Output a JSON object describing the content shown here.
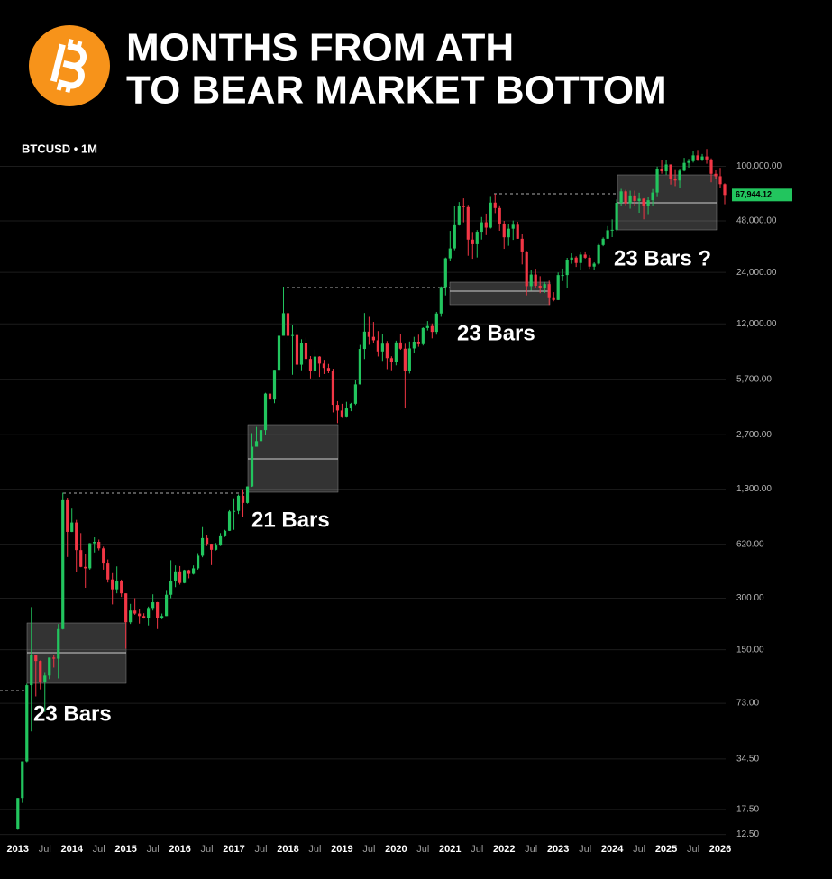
{
  "chart_data": {
    "type": "candlestick",
    "title": [
      "MONTHS FROM ATH",
      "TO BEAR MARKET BOTTOM"
    ],
    "symbol": "BTCUSD • 1M",
    "annotations": [
      "23 Bars",
      "21 Bars",
      "23 Bars",
      "23 Bars ?"
    ],
    "last_price": {
      "value": 67944.12,
      "label": "67,944.12"
    },
    "up_color": "#22c55e",
    "down_color": "#f23645",
    "log_scale": true,
    "grid": true,
    "xlim": [
      2012.67,
      2026.1
    ],
    "xticks": [
      2013,
      {
        "value": 2013.5,
        "label": "Jul"
      },
      2014,
      {
        "value": 2014.5,
        "label": "Jul"
      },
      2015,
      {
        "value": 2015.5,
        "label": "Jul"
      },
      2016,
      {
        "value": 2016.5,
        "label": "Jul"
      },
      2017,
      {
        "value": 2017.5,
        "label": "Jul"
      },
      2018,
      {
        "value": 2018.5,
        "label": "Jul"
      },
      2019,
      {
        "value": 2019.5,
        "label": "Jul"
      },
      2020,
      {
        "value": 2020.5,
        "label": "Jul"
      },
      2021,
      {
        "value": 2021.5,
        "label": "Jul"
      },
      2022,
      {
        "value": 2022.5,
        "label": "Jul"
      },
      2023,
      {
        "value": 2023.5,
        "label": "Jul"
      },
      2024,
      {
        "value": 2024.5,
        "label": "Jul"
      },
      2025,
      {
        "value": 2025.5,
        "label": "Jul"
      },
      2026
    ],
    "ylim": [
      10,
      150000
    ],
    "yticks": [
      {
        "value": 100000,
        "label": "100,000.00"
      },
      {
        "value": 48000,
        "label": "48,000.00"
      },
      {
        "value": 24000,
        "label": "24,000.00"
      },
      {
        "value": 12000,
        "label": "12,000.00"
      },
      {
        "value": 5700,
        "label": "5,700.00"
      },
      {
        "value": 2700,
        "label": "2,700.00"
      },
      {
        "value": 1300,
        "label": "1,300.00"
      },
      {
        "value": 620,
        "label": "620.00"
      },
      {
        "value": 300,
        "label": "300.00"
      },
      {
        "value": 150,
        "label": "150.00"
      },
      {
        "value": 73,
        "label": "73.00"
      },
      {
        "value": 34.5,
        "label": "34.50"
      },
      {
        "value": 17.5,
        "label": "17.50"
      },
      {
        "value": 12.5,
        "label": "12.50"
      }
    ],
    "x": [
      "2013-01",
      "2013-02",
      "2013-03",
      "2013-04",
      "2013-05",
      "2013-06",
      "2013-07",
      "2013-08",
      "2013-09",
      "2013-10",
      "2013-11",
      "2013-12",
      "2014-01",
      "2014-02",
      "2014-03",
      "2014-04",
      "2014-05",
      "2014-06",
      "2014-07",
      "2014-08",
      "2014-09",
      "2014-10",
      "2014-11",
      "2014-12",
      "2015-01",
      "2015-02",
      "2015-03",
      "2015-04",
      "2015-05",
      "2015-06",
      "2015-07",
      "2015-08",
      "2015-09",
      "2015-10",
      "2015-11",
      "2015-12",
      "2016-01",
      "2016-02",
      "2016-03",
      "2016-04",
      "2016-05",
      "2016-06",
      "2016-07",
      "2016-08",
      "2016-09",
      "2016-10",
      "2016-11",
      "2016-12",
      "2017-01",
      "2017-02",
      "2017-03",
      "2017-04",
      "2017-05",
      "2017-06",
      "2017-07",
      "2017-08",
      "2017-09",
      "2017-10",
      "2017-11",
      "2017-12",
      "2018-01",
      "2018-02",
      "2018-03",
      "2018-04",
      "2018-05",
      "2018-06",
      "2018-07",
      "2018-08",
      "2018-09",
      "2018-10",
      "2018-11",
      "2018-12",
      "2019-01",
      "2019-02",
      "2019-03",
      "2019-04",
      "2019-05",
      "2019-06",
      "2019-07",
      "2019-08",
      "2019-09",
      "2019-10",
      "2019-11",
      "2019-12",
      "2020-01",
      "2020-02",
      "2020-03",
      "2020-04",
      "2020-05",
      "2020-06",
      "2020-07",
      "2020-08",
      "2020-09",
      "2020-10",
      "2020-11",
      "2020-12",
      "2021-01",
      "2021-02",
      "2021-03",
      "2021-04",
      "2021-05",
      "2021-06",
      "2021-07",
      "2021-08",
      "2021-09",
      "2021-10",
      "2021-11",
      "2021-12",
      "2022-01",
      "2022-02",
      "2022-03",
      "2022-04",
      "2022-05",
      "2022-06",
      "2022-07",
      "2022-08",
      "2022-09",
      "2022-10",
      "2022-11",
      "2022-12",
      "2023-01",
      "2023-02",
      "2023-03",
      "2023-04",
      "2023-05",
      "2023-06",
      "2023-07",
      "2023-08",
      "2023-09",
      "2023-10",
      "2023-11",
      "2023-12",
      "2024-01",
      "2024-02",
      "2024-03",
      "2024-04",
      "2024-05",
      "2024-06",
      "2024-07",
      "2024-08",
      "2024-09",
      "2024-10",
      "2024-11",
      "2024-12",
      "2025-01",
      "2025-02",
      "2025-03",
      "2025-04",
      "2025-05",
      "2025-06",
      "2025-07",
      "2025-08",
      "2025-09",
      "2025-10",
      "2025-11",
      "2025-12",
      "2026-01",
      "2026-02"
    ],
    "open": [
      13.5,
      20.4,
      33.4,
      93,
      139,
      129,
      97,
      106,
      135,
      133,
      198,
      1120,
      732,
      830,
      573,
      457,
      448,
      628,
      640,
      586,
      478,
      386,
      338,
      378,
      320,
      217,
      254,
      244,
      236,
      230,
      263,
      284,
      230,
      236,
      314,
      378,
      430,
      368,
      437,
      416,
      448,
      531,
      673,
      624,
      575,
      609,
      698,
      742,
      963,
      970,
      1190,
      1080,
      1348,
      2300,
      2480,
      2875,
      4700,
      4340,
      6470,
      10230,
      13860,
      10220,
      10330,
      6930,
      9240,
      7490,
      6390,
      7730,
      7030,
      6630,
      6370,
      4040,
      3740,
      3460,
      3850,
      4100,
      5320,
      8570,
      10820,
      10080,
      9630,
      8290,
      9200,
      7570,
      7190,
      9350,
      8600,
      6410,
      8630,
      9450,
      9140,
      11350,
      11660,
      10780,
      13800,
      19700,
      28990,
      33110,
      45240,
      58920,
      57720,
      37300,
      35040,
      41460,
      47100,
      43790,
      61320,
      57000,
      46300,
      38480,
      43190,
      45540,
      37710,
      31790,
      19940,
      23300,
      20050,
      19430,
      20490,
      17170,
      16540,
      23140,
      23150,
      28480,
      29270,
      27220,
      30480,
      29230,
      25940,
      26970,
      34650,
      37720,
      42280,
      42580,
      61130,
      71330,
      60640,
      67490,
      62680,
      64620,
      58970,
      63330,
      70220,
      96410,
      93430,
      102430,
      84350,
      82550,
      94200,
      104640,
      107140,
      115760,
      108250,
      114050,
      109600,
      90400,
      87500,
      78600
    ],
    "high": [
      20.4,
      33.4,
      95,
      266,
      140,
      130,
      111,
      135,
      140,
      212,
      1240,
      1160,
      1000,
      860,
      720,
      545,
      630,
      680,
      660,
      600,
      505,
      420,
      460,
      385,
      320,
      278,
      300,
      260,
      245,
      268,
      316,
      285,
      244,
      335,
      500,
      466,
      462,
      440,
      440,
      466,
      550,
      780,
      705,
      625,
      630,
      720,
      752,
      980,
      1150,
      1210,
      1300,
      1350,
      2760,
      3000,
      2920,
      4750,
      5000,
      6470,
      11500,
      19800,
      17250,
      11790,
      11680,
      9760,
      10000,
      7780,
      8500,
      7770,
      7400,
      7000,
      6560,
      4250,
      4100,
      4210,
      4150,
      5640,
      9050,
      13900,
      13190,
      12330,
      10900,
      10500,
      9530,
      7760,
      9580,
      10520,
      9190,
      9470,
      10080,
      10380,
      11450,
      12480,
      12080,
      14100,
      19860,
      29300,
      41950,
      58350,
      61790,
      64900,
      59500,
      41330,
      42400,
      50500,
      52920,
      67000,
      69000,
      59100,
      47990,
      45800,
      48190,
      47440,
      40000,
      31990,
      24650,
      25200,
      22800,
      21090,
      21480,
      18390,
      23960,
      25250,
      29190,
      31000,
      29820,
      31430,
      31800,
      30200,
      27480,
      35200,
      38430,
      44700,
      48970,
      64000,
      73780,
      72800,
      71980,
      72000,
      70000,
      65100,
      66500,
      73600,
      99600,
      108300,
      109350,
      102500,
      95000,
      95750,
      111980,
      110500,
      123200,
      124500,
      117900,
      126200,
      111200,
      94600,
      97900,
      79500
    ],
    "low": [
      13.3,
      19.1,
      33,
      50,
      80,
      88,
      65,
      101,
      118,
      102,
      197,
      522,
      730,
      425,
      455,
      345,
      440,
      555,
      570,
      440,
      370,
      276,
      320,
      305,
      152,
      212,
      240,
      213,
      228,
      208,
      254,
      198,
      226,
      236,
      300,
      348,
      360,
      366,
      392,
      412,
      440,
      520,
      605,
      468,
      570,
      605,
      683,
      740,
      752,
      930,
      890,
      1070,
      1340,
      2300,
      1840,
      2680,
      2980,
      4130,
      5520,
      10230,
      9250,
      6050,
      6550,
      6430,
      7060,
      5760,
      6080,
      5880,
      6110,
      6180,
      3650,
      3160,
      3390,
      3400,
      3710,
      4030,
      5310,
      7480,
      9060,
      9320,
      7740,
      7300,
      6530,
      6430,
      6870,
      8470,
      3850,
      6150,
      8110,
      8830,
      8980,
      10980,
      9880,
      10380,
      13200,
      17600,
      28130,
      32300,
      45000,
      47050,
      30000,
      28800,
      29300,
      37330,
      39600,
      43280,
      53260,
      42000,
      32930,
      34320,
      37150,
      37690,
      26700,
      17620,
      18780,
      19600,
      18150,
      18190,
      15480,
      16260,
      16500,
      21350,
      19550,
      26940,
      25810,
      24800,
      28860,
      25170,
      24900,
      26560,
      34120,
      37630,
      38560,
      41880,
      59000,
      59200,
      56500,
      58400,
      53500,
      49000,
      52550,
      58900,
      66800,
      90500,
      89160,
      78200,
      76600,
      74400,
      93300,
      98200,
      105100,
      107300,
      107300,
      103500,
      80600,
      84400,
      74600,
      60000
    ],
    "close": [
      20.4,
      33.4,
      93,
      139,
      129,
      97,
      106,
      135,
      133,
      198,
      1120,
      732,
      830,
      573,
      457,
      448,
      628,
      640,
      586,
      478,
      386,
      338,
      378,
      320,
      217,
      254,
      244,
      236,
      230,
      263,
      284,
      230,
      236,
      314,
      378,
      430,
      368,
      437,
      416,
      448,
      531,
      673,
      624,
      575,
      609,
      698,
      742,
      963,
      970,
      1190,
      1080,
      1348,
      2300,
      2480,
      2875,
      4700,
      4340,
      6470,
      10230,
      13860,
      10220,
      10330,
      6930,
      9240,
      7490,
      6390,
      7730,
      7030,
      6630,
      6370,
      4040,
      3740,
      3460,
      3850,
      4100,
      5320,
      8570,
      10820,
      10080,
      9630,
      8290,
      9200,
      7570,
      7190,
      9350,
      8600,
      6410,
      8630,
      9450,
      9140,
      11350,
      11660,
      10780,
      13800,
      19700,
      28990,
      33110,
      45240,
      58920,
      57720,
      37300,
      35040,
      41460,
      47100,
      43790,
      61320,
      57000,
      46300,
      38480,
      43190,
      45540,
      37710,
      31790,
      19940,
      23300,
      20050,
      19430,
      20490,
      17170,
      16540,
      23140,
      23150,
      28480,
      29270,
      27220,
      30480,
      29230,
      25940,
      26970,
      34650,
      37720,
      42280,
      42580,
      61130,
      71330,
      60640,
      67490,
      62680,
      64620,
      58970,
      63330,
      70220,
      96410,
      93430,
      102430,
      84350,
      82550,
      94200,
      104640,
      107140,
      115760,
      108250,
      114050,
      109600,
      90400,
      87500,
      78600,
      67944.12
    ]
  }
}
